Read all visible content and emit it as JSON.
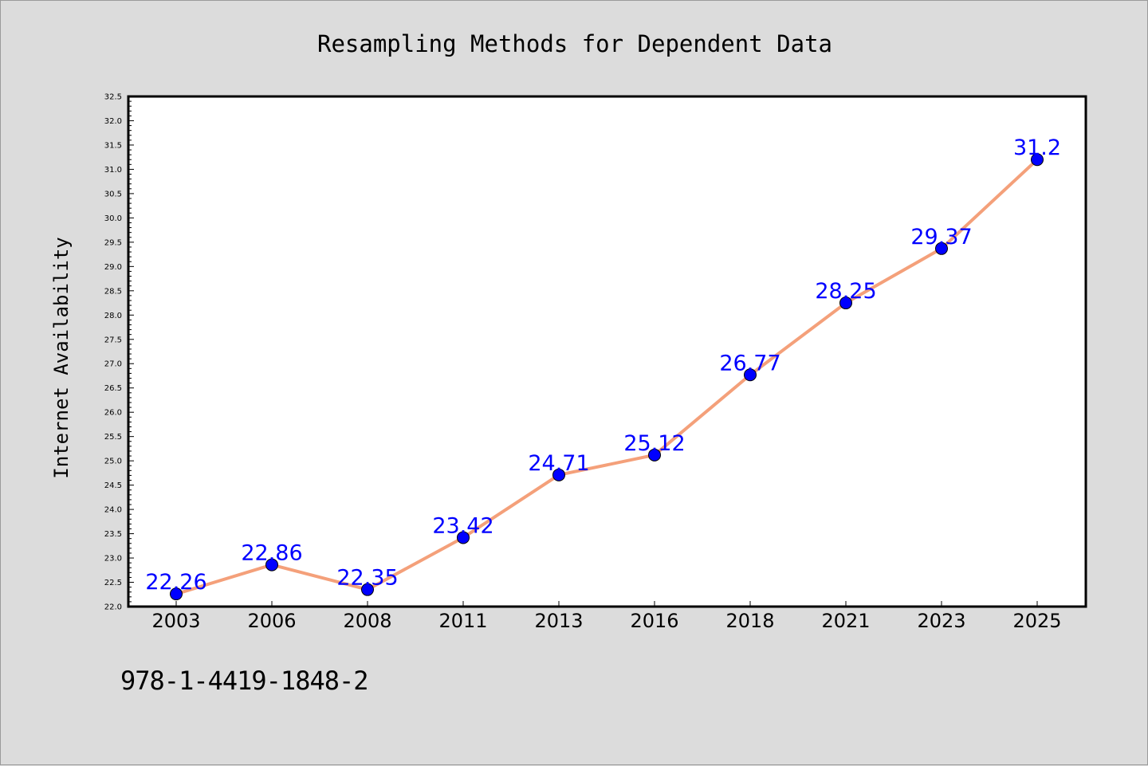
{
  "footer": {
    "isbn": "978-1-4419-1848-2"
  },
  "chart_data": {
    "type": "line",
    "title": "Resampling Methods for Dependent Data",
    "xlabel": "",
    "ylabel": "Internet Availability",
    "categories": [
      "2003",
      "2006",
      "2008",
      "2011",
      "2013",
      "2016",
      "2018",
      "2021",
      "2023",
      "2025"
    ],
    "series": [
      {
        "values": [
          22.26,
          22.86,
          22.35,
          23.42,
          24.71,
          25.12,
          26.77,
          28.25,
          29.37,
          31.2
        ]
      }
    ],
    "data_labels": [
      "22.26",
      "22.86",
      "22.35",
      "23.42",
      "24.71",
      "25.12",
      "26.77",
      "28.25",
      "29.37",
      "31.2"
    ],
    "ylim": [
      22.0,
      32.5
    ],
    "ytick_step": 0.5,
    "grid": false,
    "colors": {
      "line": "#f4a07a",
      "marker": "#0000ff",
      "data_label": "#0000ff",
      "background": "#dcdcdc",
      "plot_background": "#ffffff"
    }
  }
}
